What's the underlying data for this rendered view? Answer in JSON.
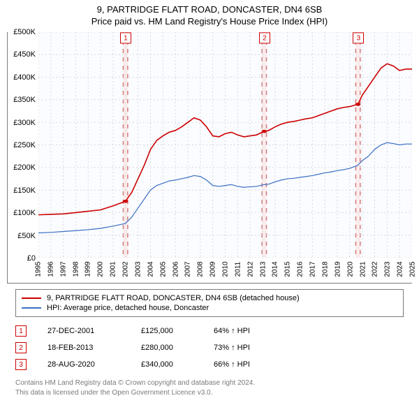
{
  "title_line1": "9, PARTRIDGE FLATT ROAD, DONCASTER, DN4 6SB",
  "title_line2": "Price paid vs. HM Land Registry's House Price Index (HPI)",
  "chart": {
    "type": "line",
    "background_color": "#fafcff",
    "grid_color": "#d8d8de",
    "grid_dash": "2 3",
    "sale_band_fill": "#fbecec",
    "sale_band_stroke": "#d37b7b",
    "ylabel_prefix": "£",
    "y_min": 0,
    "y_max": 500000,
    "y_tick_step": 50000,
    "y_tick_labels": [
      "£0",
      "£50K",
      "£100K",
      "£150K",
      "£200K",
      "£250K",
      "£300K",
      "£350K",
      "£400K",
      "£450K",
      "£500K"
    ],
    "x_min": 1995,
    "x_max": 2025,
    "x_ticks": [
      1995,
      1996,
      1997,
      1998,
      1999,
      2000,
      2001,
      2002,
      2003,
      2004,
      2005,
      2006,
      2007,
      2008,
      2009,
      2010,
      2011,
      2012,
      2013,
      2014,
      2015,
      2016,
      2017,
      2018,
      2019,
      2020,
      2021,
      2022,
      2023,
      2024,
      2025
    ],
    "series": [
      {
        "id": "property",
        "label": "9, PARTRIDGE FLATT ROAD, DONCASTER, DN4 6SB (detached house)",
        "color": "#cc0000",
        "line_width": 1.6,
        "points": [
          [
            1995.0,
            95000
          ],
          [
            1996.0,
            96000
          ],
          [
            1997.0,
            97000
          ],
          [
            1998.0,
            100000
          ],
          [
            1999.0,
            103000
          ],
          [
            2000.0,
            106000
          ],
          [
            2001.0,
            115000
          ],
          [
            2001.99,
            125000
          ],
          [
            2002.5,
            145000
          ],
          [
            2003.0,
            175000
          ],
          [
            2003.5,
            205000
          ],
          [
            2004.0,
            240000
          ],
          [
            2004.5,
            260000
          ],
          [
            2005.0,
            270000
          ],
          [
            2005.5,
            278000
          ],
          [
            2006.0,
            282000
          ],
          [
            2006.5,
            290000
          ],
          [
            2007.0,
            300000
          ],
          [
            2007.5,
            310000
          ],
          [
            2008.0,
            305000
          ],
          [
            2008.5,
            290000
          ],
          [
            2009.0,
            270000
          ],
          [
            2009.5,
            268000
          ],
          [
            2010.0,
            275000
          ],
          [
            2010.5,
            278000
          ],
          [
            2011.0,
            272000
          ],
          [
            2011.5,
            268000
          ],
          [
            2012.0,
            270000
          ],
          [
            2012.5,
            272000
          ],
          [
            2013.13,
            280000
          ],
          [
            2013.5,
            282000
          ],
          [
            2014.0,
            290000
          ],
          [
            2014.5,
            296000
          ],
          [
            2015.0,
            300000
          ],
          [
            2015.5,
            302000
          ],
          [
            2016.0,
            305000
          ],
          [
            2016.5,
            308000
          ],
          [
            2017.0,
            310000
          ],
          [
            2017.5,
            315000
          ],
          [
            2018.0,
            320000
          ],
          [
            2018.5,
            325000
          ],
          [
            2019.0,
            330000
          ],
          [
            2019.5,
            333000
          ],
          [
            2020.0,
            335000
          ],
          [
            2020.66,
            340000
          ],
          [
            2021.0,
            360000
          ],
          [
            2021.5,
            380000
          ],
          [
            2022.0,
            400000
          ],
          [
            2022.5,
            420000
          ],
          [
            2023.0,
            430000
          ],
          [
            2023.5,
            425000
          ],
          [
            2024.0,
            415000
          ],
          [
            2024.5,
            418000
          ],
          [
            2025.0,
            418000
          ]
        ]
      },
      {
        "id": "hpi",
        "label": "HPI: Average price, detached house, Doncaster",
        "color": "#3b6fc4",
        "line_width": 1.2,
        "points": [
          [
            1995.0,
            55000
          ],
          [
            1996.0,
            56000
          ],
          [
            1997.0,
            58000
          ],
          [
            1998.0,
            60000
          ],
          [
            1999.0,
            62000
          ],
          [
            2000.0,
            65000
          ],
          [
            2001.0,
            70000
          ],
          [
            2001.99,
            76000
          ],
          [
            2002.5,
            90000
          ],
          [
            2003.0,
            110000
          ],
          [
            2003.5,
            130000
          ],
          [
            2004.0,
            150000
          ],
          [
            2004.5,
            160000
          ],
          [
            2005.0,
            165000
          ],
          [
            2005.5,
            170000
          ],
          [
            2006.0,
            172000
          ],
          [
            2006.5,
            175000
          ],
          [
            2007.0,
            178000
          ],
          [
            2007.5,
            182000
          ],
          [
            2008.0,
            180000
          ],
          [
            2008.5,
            172000
          ],
          [
            2009.0,
            160000
          ],
          [
            2009.5,
            158000
          ],
          [
            2010.0,
            160000
          ],
          [
            2010.5,
            162000
          ],
          [
            2011.0,
            158000
          ],
          [
            2011.5,
            156000
          ],
          [
            2012.0,
            157000
          ],
          [
            2012.5,
            158000
          ],
          [
            2013.13,
            162000
          ],
          [
            2013.5,
            163000
          ],
          [
            2014.0,
            168000
          ],
          [
            2014.5,
            172000
          ],
          [
            2015.0,
            175000
          ],
          [
            2015.5,
            176000
          ],
          [
            2016.0,
            178000
          ],
          [
            2016.5,
            180000
          ],
          [
            2017.0,
            182000
          ],
          [
            2017.5,
            185000
          ],
          [
            2018.0,
            188000
          ],
          [
            2018.5,
            190000
          ],
          [
            2019.0,
            193000
          ],
          [
            2019.5,
            195000
          ],
          [
            2020.0,
            198000
          ],
          [
            2020.66,
            205000
          ],
          [
            2021.0,
            215000
          ],
          [
            2021.5,
            225000
          ],
          [
            2022.0,
            240000
          ],
          [
            2022.5,
            250000
          ],
          [
            2023.0,
            255000
          ],
          [
            2023.5,
            253000
          ],
          [
            2024.0,
            250000
          ],
          [
            2024.5,
            252000
          ],
          [
            2025.0,
            252000
          ]
        ]
      }
    ],
    "sale_markers": [
      {
        "n": "1",
        "x": 2001.99,
        "y": 125000
      },
      {
        "n": "2",
        "x": 2013.13,
        "y": 280000
      },
      {
        "n": "3",
        "x": 2020.66,
        "y": 340000
      }
    ],
    "sale_marker_color": "#cc0000"
  },
  "legend": {
    "rows": [
      {
        "color": "#cc0000",
        "label": "9, PARTRIDGE FLATT ROAD, DONCASTER, DN4 6SB (detached house)"
      },
      {
        "color": "#3b6fc4",
        "label": "HPI: Average price, detached house, Doncaster"
      }
    ]
  },
  "sales_table": [
    {
      "n": "1",
      "date": "27-DEC-2001",
      "price": "£125,000",
      "delta": "64% ↑ HPI"
    },
    {
      "n": "2",
      "date": "18-FEB-2013",
      "price": "£280,000",
      "delta": "73% ↑ HPI"
    },
    {
      "n": "3",
      "date": "28-AUG-2020",
      "price": "£340,000",
      "delta": "66% ↑ HPI"
    }
  ],
  "footer_line1": "Contains HM Land Registry data © Crown copyright and database right 2024.",
  "footer_line2": "This data is licensed under the Open Government Licence v3.0."
}
